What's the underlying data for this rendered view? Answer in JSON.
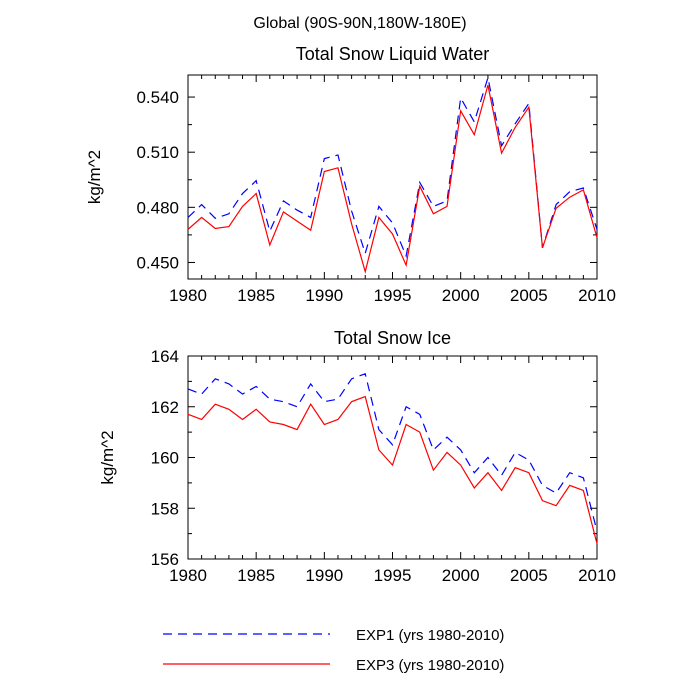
{
  "figure": {
    "title": "Global (90S-90N,180W-180E)"
  },
  "legend": {
    "items": [
      {
        "label": "EXP1 (yrs 1980-2010)",
        "color": "#0000ff",
        "dash": "dashed"
      },
      {
        "label": "EXP3 (yrs 1980-2010)",
        "color": "#ff0000",
        "dash": "solid"
      }
    ]
  },
  "chart_data": [
    {
      "type": "line",
      "title": "Total Snow Liquid Water",
      "xlabel": "",
      "ylabel": "kg/m^2",
      "xlim": [
        1980,
        2010
      ],
      "ylim": [
        0.441,
        0.552
      ],
      "xticks": [
        1980,
        1985,
        1990,
        1995,
        2000,
        2005,
        2010
      ],
      "yticks": [
        0.45,
        0.48,
        0.51,
        0.54
      ],
      "ytick_labels": [
        "0.450",
        "0.480",
        "0.510",
        "0.540"
      ],
      "x": [
        1980,
        1981,
        1982,
        1983,
        1984,
        1985,
        1986,
        1987,
        1988,
        1989,
        1990,
        1991,
        1992,
        1993,
        1994,
        1995,
        1996,
        1997,
        1998,
        1999,
        2000,
        2001,
        2002,
        2003,
        2004,
        2005,
        2006,
        2007,
        2008,
        2009,
        2010
      ],
      "series": [
        {
          "name": "EXP1 (yrs 1980-2010)",
          "color": "#0000ff",
          "dash": "dashed",
          "values": [
            0.4745,
            0.4815,
            0.474,
            0.4765,
            0.4875,
            0.4945,
            0.467,
            0.4835,
            0.4785,
            0.4745,
            0.5065,
            0.5085,
            0.478,
            0.455,
            0.4805,
            0.4715,
            0.4535,
            0.4935,
            0.4805,
            0.4835,
            0.5395,
            0.5265,
            0.5505,
            0.5135,
            0.5255,
            0.5365,
            0.458,
            0.4815,
            0.4885,
            0.4905,
            0.468
          ]
        },
        {
          "name": "EXP3 (yrs 1980-2010)",
          "color": "#ff0000",
          "dash": "solid",
          "values": [
            0.468,
            0.4745,
            0.4685,
            0.4695,
            0.4805,
            0.4875,
            0.4595,
            0.4775,
            0.4725,
            0.4675,
            0.4995,
            0.5015,
            0.471,
            0.445,
            0.4745,
            0.4655,
            0.4485,
            0.4915,
            0.4765,
            0.4805,
            0.5325,
            0.5195,
            0.5465,
            0.5095,
            0.5235,
            0.5345,
            0.458,
            0.4795,
            0.4855,
            0.4895,
            0.4635
          ]
        }
      ]
    },
    {
      "type": "line",
      "title": "Total Snow Ice",
      "xlabel": "",
      "ylabel": "kg/m^2",
      "xlim": [
        1980,
        2010
      ],
      "ylim": [
        156,
        164
      ],
      "xticks": [
        1980,
        1985,
        1990,
        1995,
        2000,
        2005,
        2010
      ],
      "yticks": [
        156,
        158,
        160,
        162,
        164
      ],
      "ytick_labels": [
        "156",
        "158",
        "160",
        "162",
        "164"
      ],
      "x": [
        1980,
        1981,
        1982,
        1983,
        1984,
        1985,
        1986,
        1987,
        1988,
        1989,
        1990,
        1991,
        1992,
        1993,
        1994,
        1995,
        1996,
        1997,
        1998,
        1999,
        2000,
        2001,
        2002,
        2003,
        2004,
        2005,
        2006,
        2007,
        2008,
        2009,
        2010
      ],
      "series": [
        {
          "name": "EXP1 (yrs 1980-2010)",
          "color": "#0000ff",
          "dash": "dashed",
          "values": [
            162.7,
            162.5,
            163.1,
            162.9,
            162.5,
            162.8,
            162.3,
            162.2,
            162.0,
            162.9,
            162.2,
            162.3,
            163.1,
            163.3,
            161.1,
            160.5,
            162.0,
            161.7,
            160.3,
            160.8,
            160.3,
            159.4,
            160.0,
            159.3,
            160.2,
            159.9,
            158.9,
            158.6,
            159.4,
            159.2,
            157.1
          ]
        },
        {
          "name": "EXP3 (yrs 1980-2010)",
          "color": "#ff0000",
          "dash": "solid",
          "values": [
            161.7,
            161.5,
            162.1,
            161.9,
            161.5,
            161.9,
            161.4,
            161.3,
            161.1,
            162.1,
            161.3,
            161.5,
            162.2,
            162.4,
            160.3,
            159.7,
            161.3,
            161.0,
            159.5,
            160.2,
            159.7,
            158.8,
            159.4,
            158.7,
            159.6,
            159.4,
            158.3,
            158.1,
            158.9,
            158.7,
            156.6
          ]
        }
      ]
    }
  ]
}
